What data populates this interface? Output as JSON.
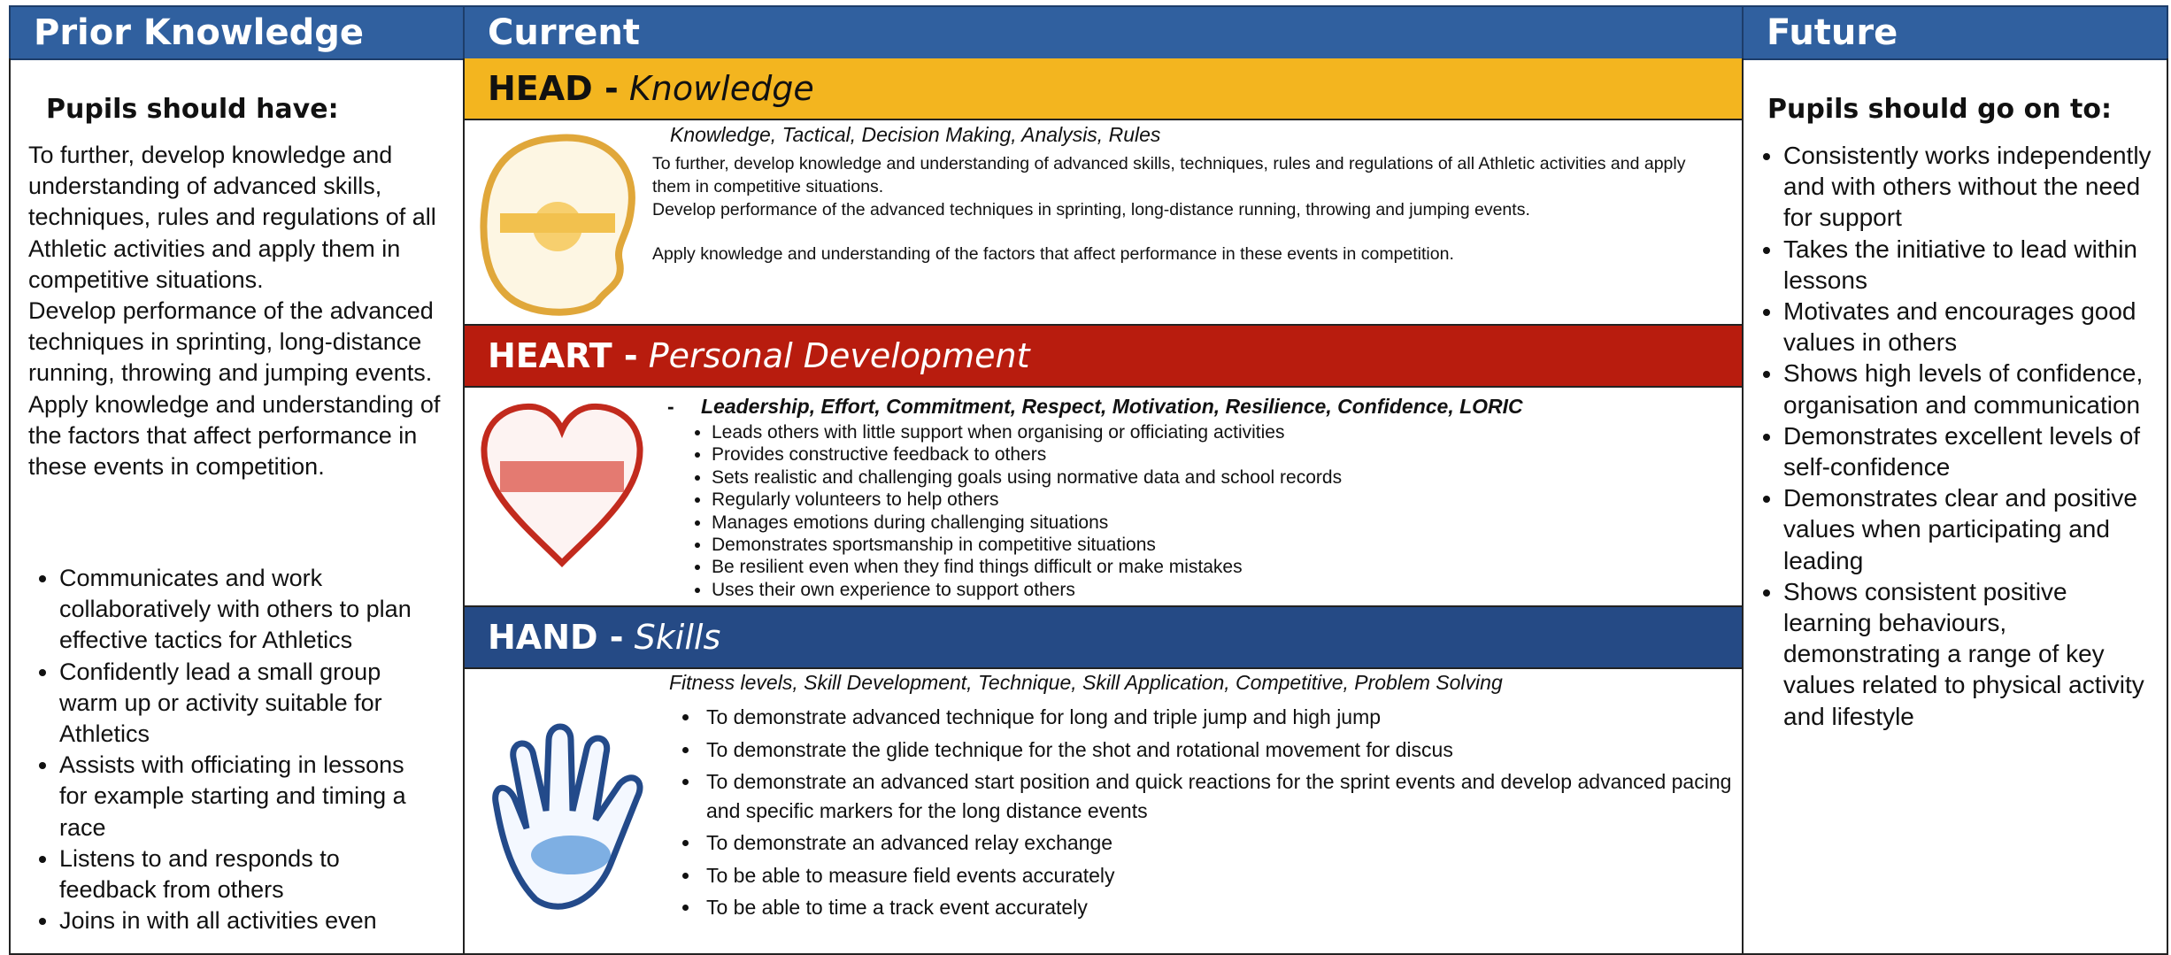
{
  "header": {
    "prior": "Prior Knowledge",
    "current": "Current",
    "future": "Future"
  },
  "prior": {
    "subtitle": "Pupils should have:",
    "paragraphs": [
      "To further, develop knowledge and understanding of advanced skills, techniques, rules and regulations of all Athletic activities and apply them in competitive situations.",
      "Develop performance of the advanced techniques in sprinting, long-distance running, throwing and jumping events.",
      "Apply knowledge and understanding of the factors that affect performance in these events in competition."
    ],
    "bullets": [
      "Communicates and work collaboratively with others to plan effective tactics for Athletics",
      "Confidently lead a small group warm up or activity suitable for Athletics",
      "Assists with officiating in lessons for example starting and timing a race",
      "Listens to and responds to feedback from others",
      "Joins in with all activities even"
    ]
  },
  "current": {
    "head": {
      "label": "HEAD -",
      "title": "Knowledge",
      "keywords": "Knowledge, Tactical, Decision Making, Analysis, Rules",
      "paragraphs": [
        "To further, develop knowledge and understanding of advanced skills, techniques, rules and regulations of all Athletic activities and apply them in competitive situations.",
        "Develop performance of the advanced techniques in sprinting, long-distance running, throwing and jumping events.",
        "Apply knowledge and understanding of the factors that affect performance in these events in competition."
      ]
    },
    "heart": {
      "label": "HEART -",
      "title": "Personal Development",
      "keywords": "Leadership, Effort, Commitment, Respect, Motivation, Resilience, Confidence, LORIC",
      "bullets": [
        "Leads others with little support when organising or officiating activities",
        "Provides constructive feedback to others",
        "Sets realistic and challenging goals using normative data and school records",
        "Regularly volunteers to help others",
        "Manages emotions during challenging situations",
        "Demonstrates sportsmanship in competitive situations",
        "Be resilient even when they find things difficult or make mistakes",
        "Uses their own experience to support others"
      ]
    },
    "hand": {
      "label": "HAND -",
      "title": "Skills",
      "keywords": "Fitness levels, Skill Development, Technique, Skill Application, Competitive, Problem Solving",
      "bullets": [
        "To demonstrate advanced technique for long and triple jump and high jump",
        "To demonstrate the glide technique for the shot and rotational movement for discus",
        "To demonstrate an advanced start position and quick reactions for the sprint events and develop advanced pacing and specific markers for the long distance events",
        "To demonstrate an advanced relay exchange",
        "To be able to measure field events accurately",
        "To be able to time a track event accurately"
      ]
    }
  },
  "future": {
    "subtitle": "Pupils should go on to:",
    "bullets": [
      "Consistently works independently and with others without the need for support",
      "Takes the initiative to lead within lessons",
      "Motivates and encourages good values in others",
      "Shows high levels of confidence, organisation and communication",
      "Demonstrates excellent levels of self-confidence",
      "Demonstrates clear and positive values when participating and leading",
      "Shows consistent positive learning behaviours, demonstrating a range of key values related to physical activity and lifestyle"
    ]
  }
}
